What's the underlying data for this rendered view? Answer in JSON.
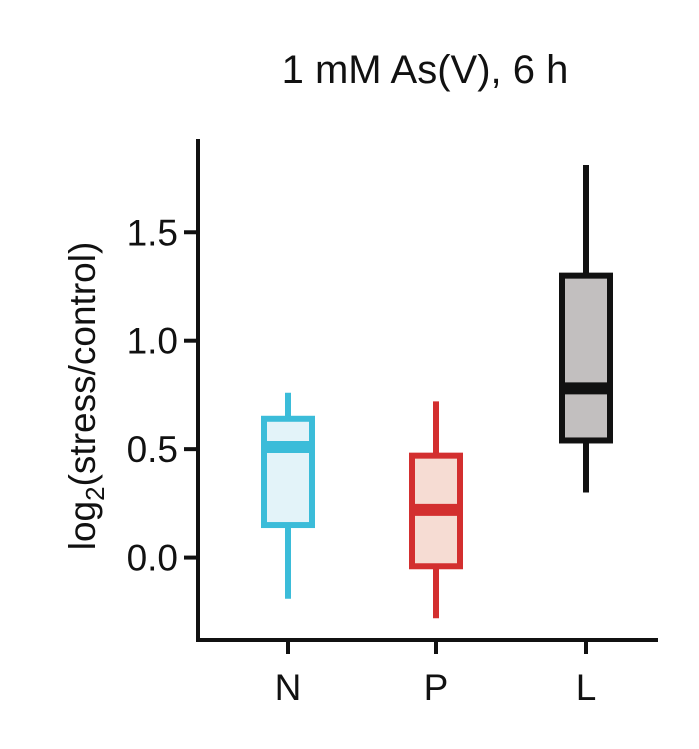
{
  "chart_data": {
    "type": "box",
    "title": "1 mM As(V), 6 h",
    "ylabel": {
      "prefix": "log",
      "subscript": "2",
      "suffix": "(stress/control)"
    },
    "xlabel": "",
    "ylim": [
      -0.38,
      1.93
    ],
    "yticks": [
      0.0,
      0.5,
      1.0,
      1.5
    ],
    "ytick_labels": [
      "0.0",
      "0.5",
      "1.0",
      "1.5"
    ],
    "categories": [
      "N",
      "P",
      "L"
    ],
    "boxes": [
      {
        "category": "N",
        "whisker_low": -0.19,
        "q1": 0.15,
        "median": 0.51,
        "q3": 0.64,
        "whisker_high": 0.76,
        "stroke": "#3bbcd9",
        "fill": "#e3f3f9"
      },
      {
        "category": "P",
        "whisker_low": -0.28,
        "q1": -0.04,
        "median": 0.22,
        "q3": 0.47,
        "whisker_high": 0.72,
        "stroke": "#d32f2f",
        "fill": "#f6dcd3"
      },
      {
        "category": "L",
        "whisker_low": 0.3,
        "q1": 0.54,
        "median": 0.78,
        "q3": 1.3,
        "whisker_high": 1.81,
        "stroke": "#111111",
        "fill": "#c2bfbf"
      }
    ]
  }
}
